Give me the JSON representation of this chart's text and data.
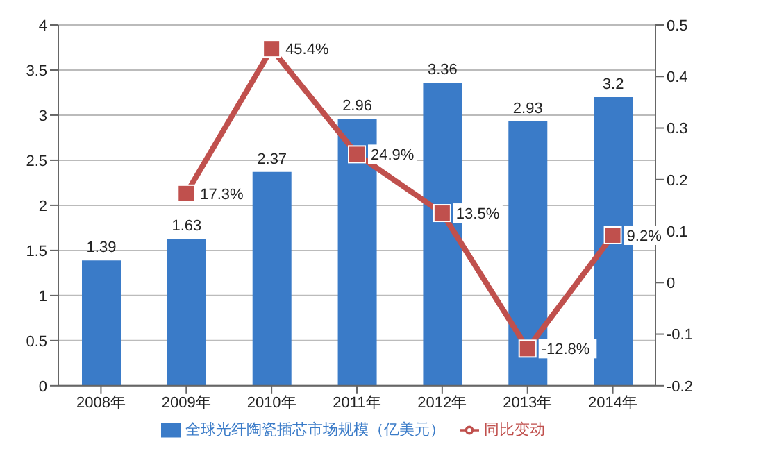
{
  "chart_data": {
    "type": "bar",
    "categories": [
      "2008年",
      "2009年",
      "2010年",
      "2011年",
      "2012年",
      "2013年",
      "2014年"
    ],
    "series": [
      {
        "name": "全球光纤陶瓷插芯市场规模（亿美元）",
        "color": "#3a7bc8",
        "values": [
          1.39,
          1.63,
          2.37,
          2.96,
          3.36,
          2.93,
          3.2
        ],
        "value_labels": [
          "1.39",
          "1.63",
          "2.37",
          "2.96",
          "3.36",
          "2.93",
          "3.2"
        ]
      },
      {
        "name": "同比变动",
        "type": "line",
        "axis": "y2",
        "color": "#c0504d",
        "marker": "square",
        "values": [
          null,
          0.173,
          0.454,
          0.249,
          0.135,
          -0.128,
          0.092
        ],
        "value_labels": [
          null,
          "17.3%",
          "45.4%",
          "24.9%",
          "13.5%",
          "-12.8%",
          "9.2%"
        ]
      }
    ],
    "ylim": [
      0,
      4
    ],
    "yticks": [
      0,
      0.5,
      1,
      1.5,
      2,
      2.5,
      3,
      3.5,
      4
    ],
    "y2lim": [
      -0.2,
      0.5
    ],
    "y2ticks": [
      -0.2,
      -0.1,
      0,
      0.1,
      0.2,
      0.3,
      0.4,
      0.5
    ],
    "grid": "y",
    "legend": "bottom"
  }
}
